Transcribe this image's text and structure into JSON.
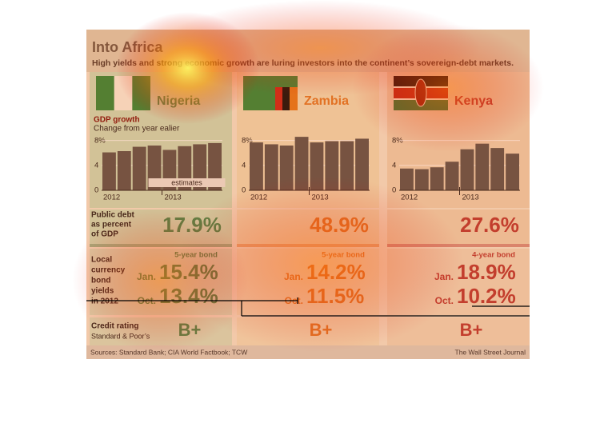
{
  "header": {
    "title": "Into Africa",
    "subtitle": "High yields and strong economic growth are luring investors into the continent’s sovereign-debt markets."
  },
  "labels": {
    "gdp_title": "GDP growth",
    "gdp_subtitle": "Change from year ealier",
    "debt": [
      "Public debt",
      "as percent",
      "of GDP"
    ],
    "bonds": [
      "Local",
      "currency",
      "bond",
      "yields",
      "in 2012"
    ],
    "jan": "Jan.",
    "oct": "Oct.",
    "rating_title": "Credit rating",
    "rating_source": "Standard & Poor’s"
  },
  "chart": {
    "ylim": [
      0,
      9
    ],
    "yticks": [
      0,
      4,
      {
        "value": 8,
        "label": "8%"
      }
    ],
    "xlabels": [
      "2012",
      "2013"
    ],
    "estimates": "estimates"
  },
  "countries": [
    {
      "name": "Nigeria",
      "color": "#3f8a52",
      "bg": "#c9dcb9",
      "bars": [
        6.1,
        6.3,
        7.0,
        7.2,
        6.5,
        7.1,
        7.4,
        7.6
      ],
      "debt": "17.9%",
      "bond": "5-year bond",
      "jan": "15.4%",
      "oct": "13.4%",
      "rating": "B+"
    },
    {
      "name": "Zambia",
      "color": "#dc7a2c",
      "bg": "#ecdcb6",
      "bars": [
        7.7,
        7.4,
        7.2,
        8.6,
        7.7,
        7.9,
        7.9,
        8.3
      ],
      "debt": "48.9%",
      "bond": "5-year bond",
      "jan": "14.2%",
      "oct": "11.5%",
      "rating": "B+"
    },
    {
      "name": "Kenya",
      "color": "#b63b38",
      "bg": "#ead2b2",
      "bars": [
        3.5,
        3.4,
        3.7,
        4.6,
        6.6,
        7.5,
        6.8,
        5.9
      ],
      "debt": "27.6%",
      "bond": "4-year bond",
      "jan": "18.9%",
      "oct": "10.2%",
      "rating": "B+"
    }
  ],
  "footer": {
    "source": "Sources: Standard Bank; CIA World Factbook; TCW",
    "publisher": "The Wall Street Journal"
  }
}
